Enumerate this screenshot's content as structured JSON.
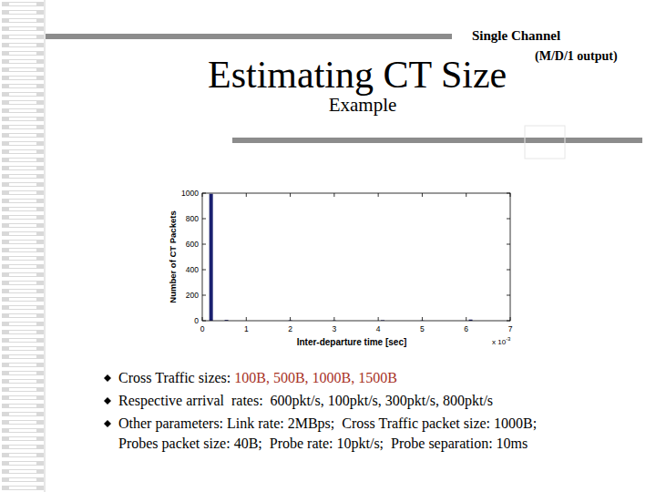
{
  "slide": {
    "title": "Estimating CT Size",
    "subtitle": "Example",
    "corner_lines": [
      "Single Channel",
      "(M/D/1 output)"
    ],
    "bullets": [
      {
        "text": "Cross Traffic sizes: ",
        "highlight": "100B, 500B, 1000B, 1500B"
      },
      {
        "text": "Respective arrival  rates:  600pkt/s, 100pkt/s, 300pkt/s, 800pkt/s"
      },
      {
        "text": "Other parameters: Link rate: 2MBps;  Cross Traffic packet size: 1000B;",
        "continuation": "Probes packet size: 40B;  Probe rate: 10pkt/s;  Probe separation: 10ms"
      }
    ]
  },
  "chart_data": {
    "type": "bar",
    "x_label": "Inter-departure time [sec]",
    "y_label": "Number of CT Packets",
    "x_multiplier": {
      "base": "x 10",
      "exponent": "-3"
    },
    "x": [
      0.0002,
      0.00055,
      0.002,
      0.003,
      0.0041,
      0.005,
      0.0061
    ],
    "values": [
      995,
      6,
      3,
      2,
      4,
      2,
      9
    ],
    "color": "#1b2170",
    "xlim": [
      0,
      0.007
    ],
    "xticks": [
      {
        "value": 0,
        "label": "0"
      },
      {
        "value": 0.001,
        "label": "1"
      },
      {
        "value": 0.002,
        "label": "2"
      },
      {
        "value": 0.003,
        "label": "3"
      },
      {
        "value": 0.004,
        "label": "4"
      },
      {
        "value": 0.005,
        "label": "5"
      },
      {
        "value": 0.006,
        "label": "6"
      },
      {
        "value": 0.007,
        "label": "7"
      }
    ],
    "ylim": [
      0,
      1000
    ],
    "yticks": [
      0,
      200,
      400,
      600,
      800,
      1000
    ],
    "grid": false
  }
}
